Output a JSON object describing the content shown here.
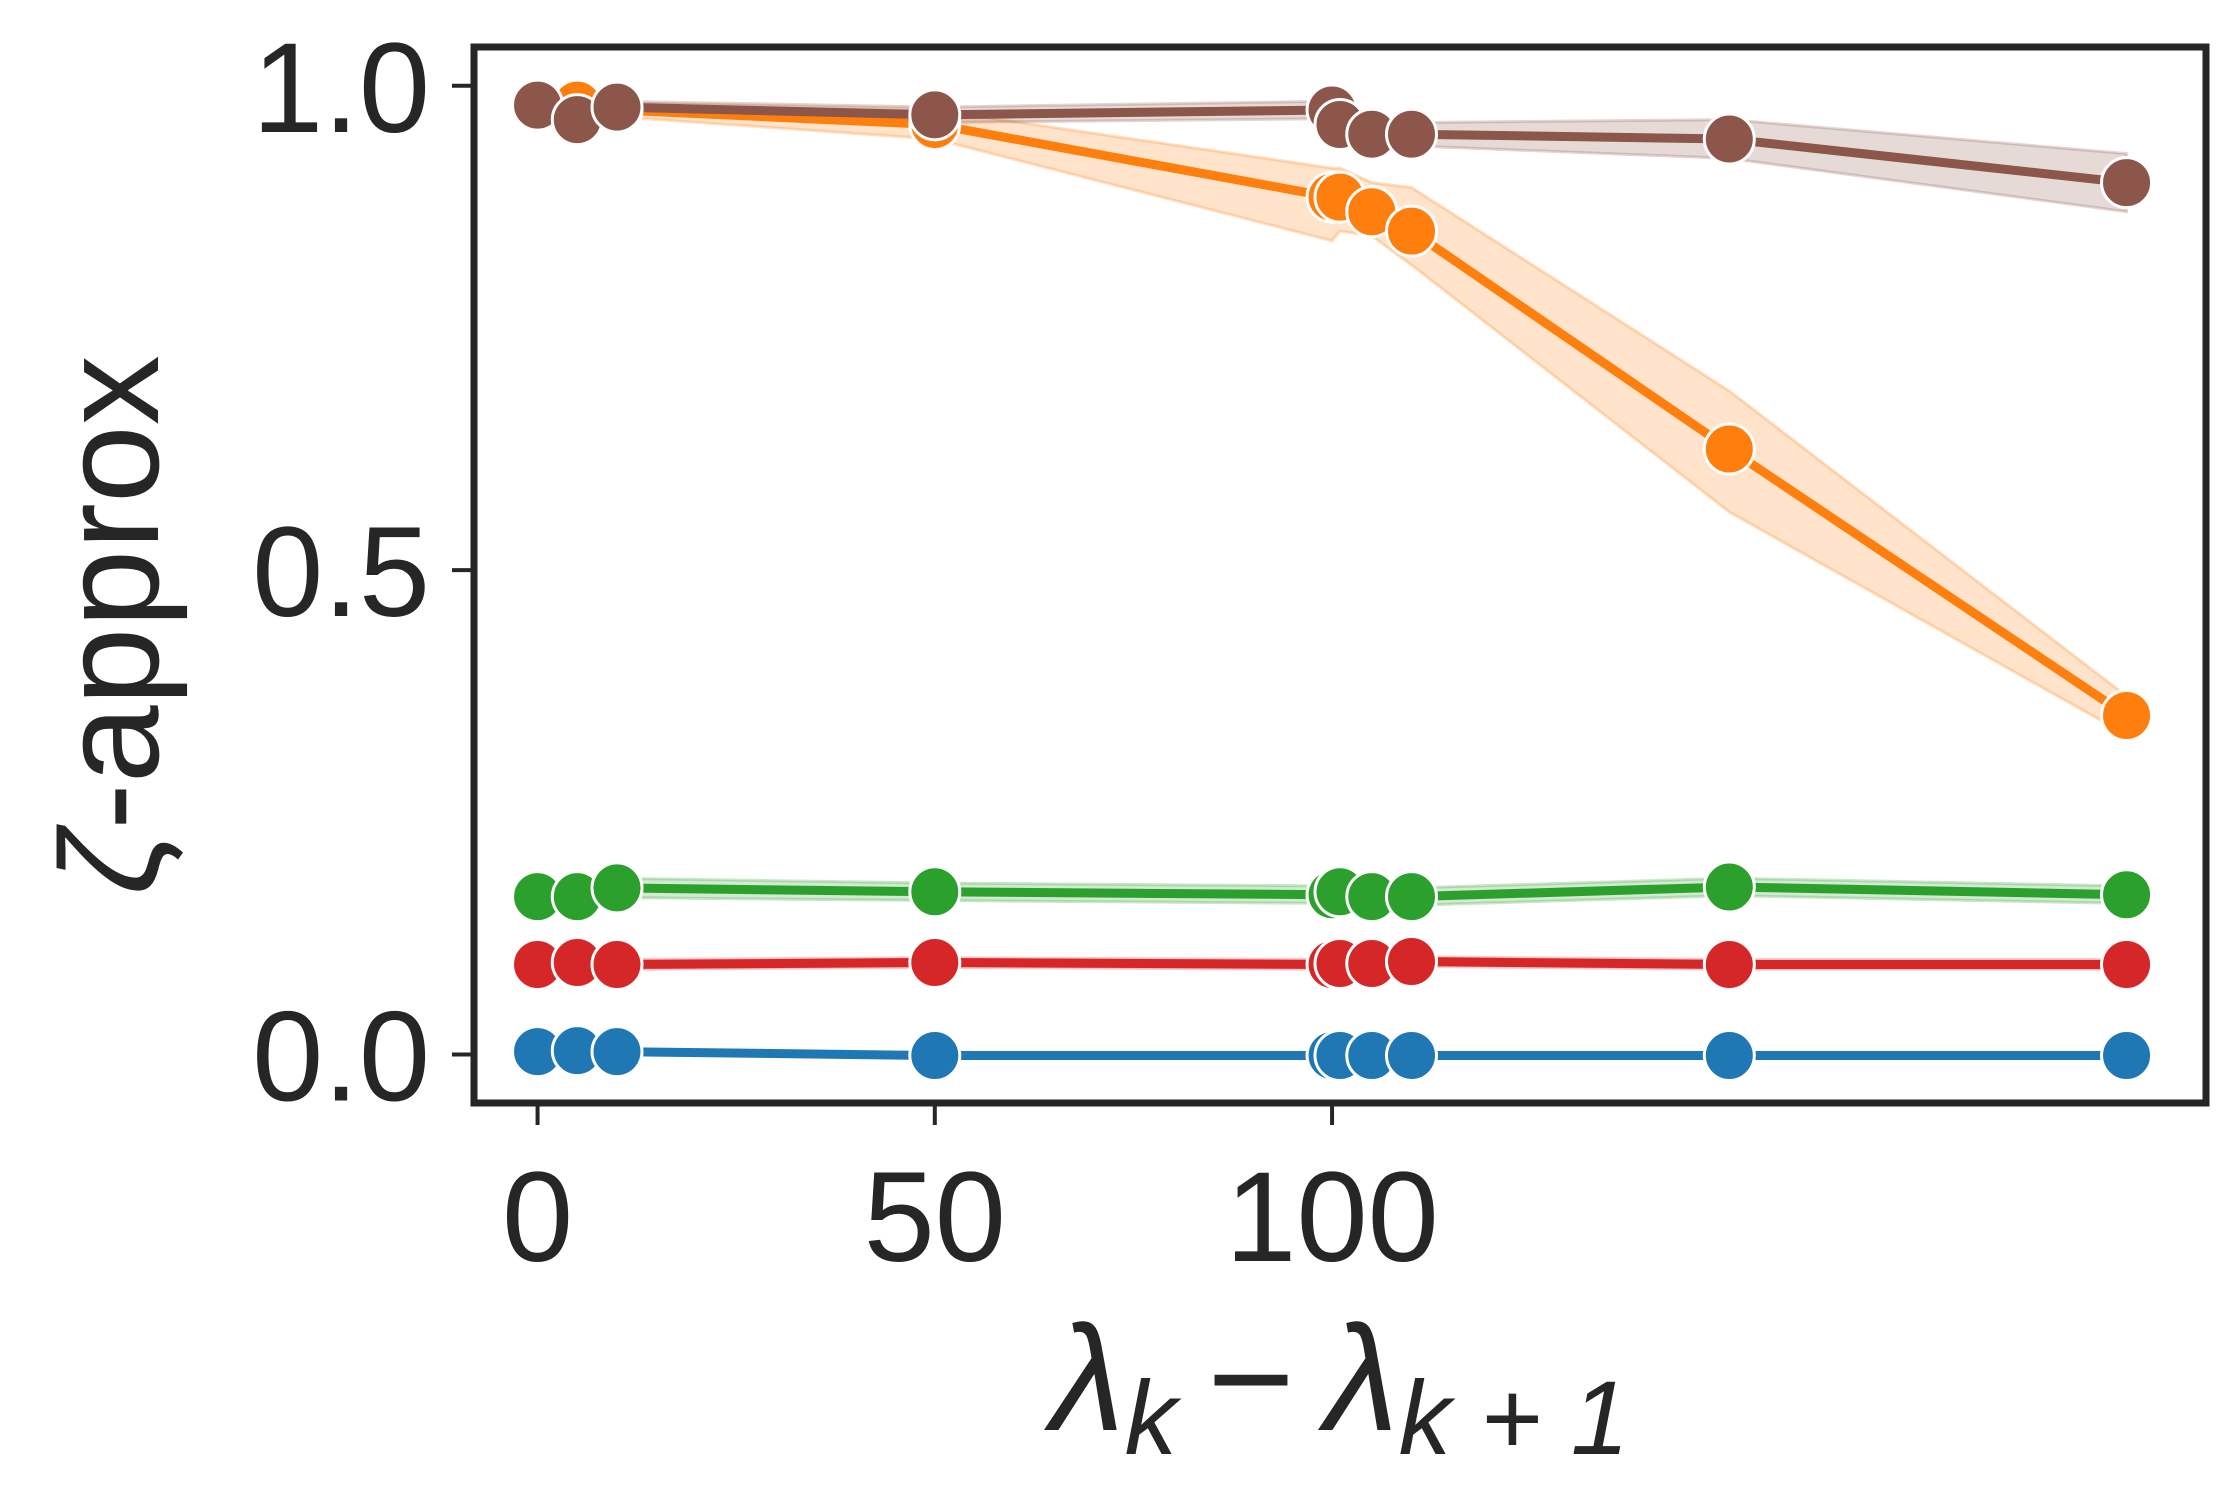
{
  "chart_data": {
    "type": "line",
    "title": "",
    "xlabel": "λ_k − λ_{k+1}",
    "xlabel_parts": {
      "lambda": "λ",
      "sub1": "k",
      "minus": "−",
      "sub2": "k + 1"
    },
    "ylabel": "ζ-approx",
    "ylabel_parts": {
      "symbol": "ζ",
      "rest": "-approx"
    },
    "xlim": [
      -8,
      210
    ],
    "ylim": [
      -0.05,
      1.04
    ],
    "xticks": [
      {
        "value": 0,
        "label": "0"
      },
      {
        "value": 50,
        "label": "50"
      },
      {
        "value": 100,
        "label": "100"
      }
    ],
    "yticks": [
      {
        "value": 0.0,
        "label": "0.0"
      },
      {
        "value": 0.5,
        "label": "0.5"
      },
      {
        "value": 1.0,
        "label": "1.0"
      }
    ],
    "grid": false,
    "x": [
      0,
      5,
      10,
      50,
      100,
      101,
      105,
      110,
      150,
      200
    ],
    "series": [
      {
        "name": "blue",
        "color": "#1f77b4",
        "values": [
          0.003,
          0.004,
          0.003,
          -0.001,
          -0.001,
          -0.001,
          -0.001,
          -0.001,
          -0.001,
          -0.001
        ],
        "lower": [
          0.0,
          0.001,
          0.0,
          -0.003,
          -0.003,
          -0.003,
          -0.003,
          -0.003,
          -0.003,
          -0.003
        ],
        "upper": [
          0.006,
          0.007,
          0.006,
          0.001,
          0.001,
          0.001,
          0.001,
          0.001,
          0.001,
          0.001
        ]
      },
      {
        "name": "red",
        "color": "#d62728",
        "values": [
          0.093,
          0.095,
          0.093,
          0.095,
          0.093,
          0.094,
          0.094,
          0.096,
          0.093,
          0.093
        ],
        "lower": [
          0.088,
          0.09,
          0.088,
          0.09,
          0.088,
          0.089,
          0.089,
          0.091,
          0.088,
          0.088
        ],
        "upper": [
          0.098,
          0.1,
          0.098,
          0.1,
          0.098,
          0.099,
          0.099,
          0.101,
          0.098,
          0.098
        ]
      },
      {
        "name": "green",
        "color": "#2ca02c",
        "values": [
          0.163,
          0.163,
          0.172,
          0.168,
          0.165,
          0.168,
          0.163,
          0.163,
          0.173,
          0.165
        ],
        "lower": [
          0.155,
          0.155,
          0.162,
          0.159,
          0.156,
          0.158,
          0.154,
          0.154,
          0.164,
          0.156
        ],
        "upper": [
          0.172,
          0.172,
          0.182,
          0.177,
          0.174,
          0.178,
          0.172,
          0.172,
          0.182,
          0.174
        ]
      },
      {
        "name": "orange",
        "color": "#ff7f0e",
        "values": [
          0.98,
          0.98,
          0.975,
          0.96,
          0.885,
          0.885,
          0.87,
          0.85,
          0.625,
          0.35
        ],
        "lower": [
          0.975,
          0.975,
          0.968,
          0.945,
          0.84,
          0.85,
          0.845,
          0.815,
          0.56,
          0.33
        ],
        "upper": [
          0.985,
          0.985,
          0.982,
          0.975,
          0.915,
          0.915,
          0.9,
          0.895,
          0.685,
          0.37
        ]
      },
      {
        "name": "brown",
        "color": "#8c564b",
        "values": [
          0.98,
          0.965,
          0.978,
          0.97,
          0.975,
          0.96,
          0.95,
          0.95,
          0.945,
          0.9
        ],
        "lower": [
          0.975,
          0.958,
          0.972,
          0.962,
          0.966,
          0.95,
          0.938,
          0.938,
          0.925,
          0.87
        ],
        "upper": [
          0.985,
          0.972,
          0.984,
          0.978,
          0.984,
          0.97,
          0.962,
          0.962,
          0.965,
          0.93
        ]
      }
    ]
  }
}
